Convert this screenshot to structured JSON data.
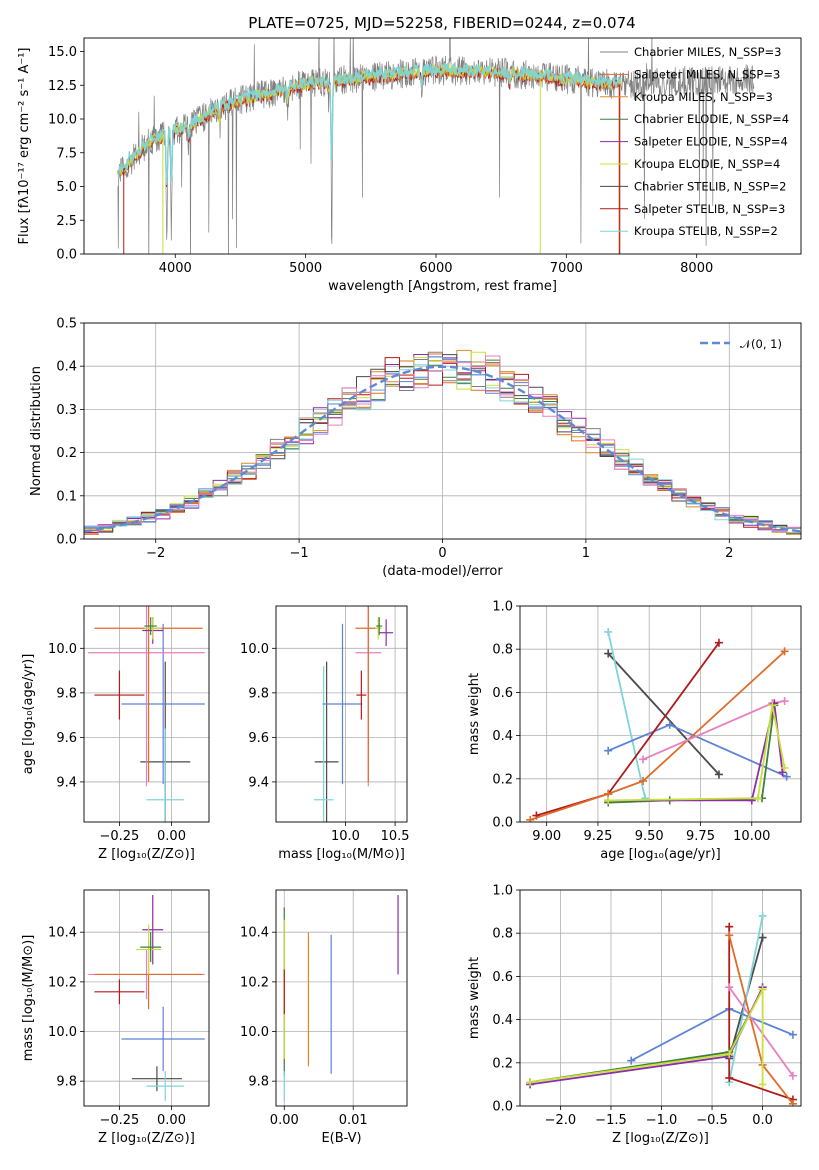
{
  "colors": {
    "chabrier_miles": "#808080",
    "salpeter_miles": "#e06c2a",
    "kroupa_miles": "#d98a2c",
    "chabrier_elodie": "#3f7f3f",
    "salpeter_elodie": "#8b2fa8",
    "kroupa_elodie": "#c9df3a",
    "chabrier_stelib": "#4a4a4a",
    "salpeter_stelib": "#b01c1c",
    "kroupa_stelib": "#7fd4d8",
    "extra_blue": "#5b84d6",
    "extra_pink": "#e87fbf",
    "normal_curve": "#5b8bd6"
  },
  "chart_data": [
    {
      "id": "spectrum",
      "type": "line",
      "title": "PLATE=0725, MJD=52258, FIBERID=0244, z=0.074",
      "xlabel": "wavelength [Angstrom, rest frame]",
      "ylabel": "Flux [fλ10⁻¹⁷ erg cm⁻² s⁻¹ A⁻¹]",
      "xlim": [
        3300,
        8800
      ],
      "ylim": [
        0,
        16
      ],
      "xticks": [
        "4000",
        "5000",
        "6000",
        "7000",
        "8000"
      ],
      "yticks": [
        "0.0",
        "2.5",
        "5.0",
        "7.5",
        "10.0",
        "12.5",
        "15.0"
      ],
      "legend_position": "upper-right",
      "legend": [
        {
          "label": "Chabrier MILES, N_SSP=3",
          "color": "#808080"
        },
        {
          "label": "Salpeter MILES, N_SSP=3",
          "color": "#e06c2a"
        },
        {
          "label": "Kroupa MILES, N_SSP=3",
          "color": "#d98a2c"
        },
        {
          "label": "Chabrier ELODIE, N_SSP=4",
          "color": "#3f7f3f"
        },
        {
          "label": "Salpeter ELODIE, N_SSP=4",
          "color": "#8b2fa8"
        },
        {
          "label": "Kroupa ELODIE, N_SSP=4",
          "color": "#c9df3a"
        },
        {
          "label": "Chabrier STELIB, N_SSP=2",
          "color": "#4a4a4a"
        },
        {
          "label": "Salpeter STELIB, N_SSP=3",
          "color": "#b01c1c"
        },
        {
          "label": "Kroupa STELIB, N_SSP=2",
          "color": "#7fd4d8"
        }
      ],
      "continuum": {
        "x": [
          3550,
          3650,
          3800,
          3950,
          4100,
          4300,
          4500,
          4800,
          5000,
          5300,
          5600,
          6000,
          6400,
          6800,
          7200,
          7500,
          7800,
          8200,
          8500
        ],
        "y": [
          5.8,
          6.8,
          8.3,
          9.0,
          9.4,
          10.7,
          11.4,
          12.1,
          12.6,
          12.9,
          13.2,
          13.6,
          13.5,
          13.2,
          12.7,
          12.5,
          12.8,
          12.9,
          13.0
        ]
      }
    },
    {
      "id": "residuals",
      "type": "histogram",
      "xlabel": "(data-model)/error",
      "ylabel": "Normed distribution",
      "xlim": [
        -2.5,
        2.5
      ],
      "ylim": [
        0,
        0.5
      ],
      "xticks": [
        "−2",
        "−1",
        "0",
        "1",
        "2"
      ],
      "yticks": [
        "0.0",
        "0.1",
        "0.2",
        "0.3",
        "0.4",
        "0.5"
      ],
      "legend_position": "upper-right",
      "legend": [
        {
          "label": "𝒩(0, 1)",
          "color": "#5b8bd6"
        }
      ],
      "bin_width": 0.1,
      "normal_pdf": {
        "mu": 0,
        "sigma": 1
      }
    },
    {
      "id": "age-vs-Z",
      "type": "errorbar",
      "xlabel": "Z [log₁₀(Z/Z⊙)]",
      "ylabel": "age  [log₁₀(age/yr)]",
      "xlim": [
        -0.42,
        0.18
      ],
      "ylim": [
        9.22,
        10.19
      ],
      "xticks": [
        {
          "v": -0.25,
          "t": "−0.25"
        },
        {
          "v": 0.0,
          "t": "0.00"
        }
      ],
      "yticks": [
        {
          "v": 9.4,
          "t": "9.4"
        },
        {
          "v": 9.6,
          "t": "9.6"
        },
        {
          "v": 9.8,
          "t": "9.8"
        },
        {
          "v": 10.0,
          "t": "10.0"
        }
      ],
      "points": [
        {
          "x": -0.03,
          "y": 9.49,
          "xerr": 0.12,
          "yerr": 0.45,
          "color": "#4a4a4a"
        },
        {
          "x": -0.03,
          "y": 9.32,
          "xerr": 0.09,
          "yerr": 0.32,
          "color": "#7fd4d8"
        },
        {
          "x": -0.04,
          "y": 9.75,
          "xerr": 0.2,
          "yerr": 0.36,
          "color": "#5b84d6"
        },
        {
          "x": -0.25,
          "y": 9.79,
          "xerr": 0.12,
          "yerr": 0.11,
          "color": "#b01c1c"
        },
        {
          "x": -0.12,
          "y": 9.98,
          "xerr": 0.28,
          "yerr": 0.6,
          "color": "#e87fbf"
        },
        {
          "x": -0.11,
          "y": 10.09,
          "xerr": 0.26,
          "yerr": 0.69,
          "color": "#e06c2a"
        },
        {
          "x": -0.09,
          "y": 10.08,
          "xerr": 0.05,
          "yerr": 0.06,
          "color": "#8b2fa8"
        },
        {
          "x": -0.09,
          "y": 10.09,
          "xerr": 0.04,
          "yerr": 0.05,
          "color": "#c9df3a"
        },
        {
          "x": -0.1,
          "y": 10.1,
          "xerr": 0.03,
          "yerr": 0.04,
          "color": "#3f7f3f"
        }
      ]
    },
    {
      "id": "age-vs-mass",
      "type": "errorbar",
      "xlabel": "mass [log₁₀(M/M⊙)]",
      "ylabel": "",
      "xlim": [
        9.3,
        10.62
      ],
      "ylim": [
        9.22,
        10.19
      ],
      "xticks": [
        {
          "v": 10.0,
          "t": "10.0"
        },
        {
          "v": 10.5,
          "t": "10.5"
        }
      ],
      "yticks": [
        {
          "v": 9.4,
          "t": "9.4"
        },
        {
          "v": 9.6,
          "t": "9.6"
        },
        {
          "v": 9.8,
          "t": "9.8"
        },
        {
          "v": 10.0,
          "t": "10.0"
        }
      ],
      "points": [
        {
          "x": 9.81,
          "y": 9.49,
          "xerr": 0.12,
          "yerr": 0.45,
          "color": "#4a4a4a"
        },
        {
          "x": 9.78,
          "y": 9.32,
          "xerr": 0.1,
          "yerr": 0.6,
          "color": "#7fd4d8"
        },
        {
          "x": 9.97,
          "y": 9.75,
          "xerr": 0.2,
          "yerr": 0.36,
          "color": "#5b84d6"
        },
        {
          "x": 10.16,
          "y": 9.79,
          "xerr": 0.05,
          "yerr": 0.11,
          "color": "#b01c1c"
        },
        {
          "x": 10.23,
          "y": 9.98,
          "xerr": 0.13,
          "yerr": 0.6,
          "color": "#e87fbf"
        },
        {
          "x": 10.23,
          "y": 10.09,
          "xerr": 0.13,
          "yerr": 0.69,
          "color": "#e06c2a"
        },
        {
          "x": 10.41,
          "y": 10.07,
          "xerr": 0.07,
          "yerr": 0.06,
          "color": "#8b2fa8"
        },
        {
          "x": 10.33,
          "y": 10.09,
          "xerr": 0.03,
          "yerr": 0.05,
          "color": "#c9df3a"
        },
        {
          "x": 10.34,
          "y": 10.1,
          "xerr": 0.03,
          "yerr": 0.04,
          "color": "#3f7f3f"
        }
      ]
    },
    {
      "id": "weight-vs-age",
      "type": "line",
      "xlabel": "age  [log₁₀(age/yr)]",
      "ylabel": "mass weight",
      "xlim": [
        8.87,
        10.24
      ],
      "ylim": [
        0,
        1
      ],
      "xticks": [
        {
          "v": 9.0,
          "t": "9.00"
        },
        {
          "v": 9.25,
          "t": "9.25"
        },
        {
          "v": 9.5,
          "t": "9.50"
        },
        {
          "v": 9.75,
          "t": "9.75"
        },
        {
          "v": 10.0,
          "t": "10.00"
        }
      ],
      "yticks": [
        {
          "v": 0,
          "t": "0.0"
        },
        {
          "v": 0.2,
          "t": "0.2"
        },
        {
          "v": 0.4,
          "t": "0.4"
        },
        {
          "v": 0.6,
          "t": "0.6"
        },
        {
          "v": 0.8,
          "t": "0.8"
        },
        {
          "v": 1.0,
          "t": "1.0"
        }
      ],
      "series": [
        {
          "color": "#4a4a4a",
          "x": [
            9.3,
            9.84
          ],
          "y": [
            0.78,
            0.22
          ]
        },
        {
          "color": "#7fd4d8",
          "x": [
            9.3,
            9.48
          ],
          "y": [
            0.88,
            0.11
          ]
        },
        {
          "color": "#5b84d6",
          "x": [
            9.3,
            9.6,
            10.17
          ],
          "y": [
            0.33,
            0.45,
            0.21
          ]
        },
        {
          "color": "#b01c1c",
          "x": [
            8.95,
            9.3,
            9.84
          ],
          "y": [
            0.03,
            0.13,
            0.83
          ]
        },
        {
          "color": "#e06c2a",
          "x": [
            8.92,
            9.3,
            9.47,
            10.16
          ],
          "y": [
            0.01,
            0.13,
            0.19,
            0.79
          ]
        },
        {
          "color": "#e87fbf",
          "x": [
            9.47,
            10.1,
            10.16
          ],
          "y": [
            0.29,
            0.55,
            0.56
          ]
        },
        {
          "color": "#3f7f3f",
          "x": [
            9.3,
            9.6,
            10.05,
            10.11
          ],
          "y": [
            0.09,
            0.1,
            0.11,
            0.54
          ]
        },
        {
          "color": "#8b2fa8",
          "x": [
            9.3,
            10.0,
            10.11,
            10.15
          ],
          "y": [
            0.1,
            0.1,
            0.55,
            0.23
          ]
        },
        {
          "color": "#c9df3a",
          "x": [
            9.3,
            10.03,
            10.1,
            10.16
          ],
          "y": [
            0.1,
            0.11,
            0.54,
            0.25
          ]
        }
      ]
    },
    {
      "id": "mass-vs-Z",
      "type": "errorbar",
      "xlabel": "Z [log₁₀(Z/Z⊙)]",
      "ylabel": "mass [log₁₀(M/M⊙)]",
      "xlim": [
        -0.42,
        0.18
      ],
      "ylim": [
        9.7,
        10.57
      ],
      "xticks": [
        {
          "v": -0.25,
          "t": "−0.25"
        },
        {
          "v": 0.0,
          "t": "0.00"
        }
      ],
      "yticks": [
        {
          "v": 9.8,
          "t": "9.8"
        },
        {
          "v": 10.0,
          "t": "10.0"
        },
        {
          "v": 10.2,
          "t": "10.2"
        },
        {
          "v": 10.4,
          "t": "10.4"
        }
      ],
      "points": [
        {
          "x": -0.07,
          "y": 9.81,
          "xerr": 0.12,
          "yerr": 0.05,
          "color": "#4a4a4a"
        },
        {
          "x": -0.03,
          "y": 9.78,
          "xerr": 0.09,
          "yerr": 0.06,
          "color": "#7fd4d8"
        },
        {
          "x": -0.04,
          "y": 9.97,
          "xerr": 0.2,
          "yerr": 0.13,
          "color": "#5b84d6"
        },
        {
          "x": -0.25,
          "y": 10.16,
          "xerr": 0.12,
          "yerr": 0.05,
          "color": "#b01c1c"
        },
        {
          "x": -0.12,
          "y": 10.23,
          "xerr": 0.28,
          "yerr": 0.1,
          "color": "#e87fbf"
        },
        {
          "x": -0.11,
          "y": 10.23,
          "xerr": 0.26,
          "yerr": 0.14,
          "color": "#e06c2a"
        },
        {
          "x": -0.09,
          "y": 10.41,
          "xerr": 0.05,
          "yerr": 0.14,
          "color": "#8b2fa8"
        },
        {
          "x": -0.11,
          "y": 10.33,
          "xerr": 0.06,
          "yerr": 0.1,
          "color": "#c9df3a"
        },
        {
          "x": -0.1,
          "y": 10.34,
          "xerr": 0.05,
          "yerr": 0.06,
          "color": "#3f7f3f"
        }
      ]
    },
    {
      "id": "mass-vs-EBV",
      "type": "errorbar",
      "xlabel": "E(B-V)",
      "ylabel": "",
      "xlim": [
        -0.0012,
        0.0178
      ],
      "ylim": [
        9.7,
        10.57
      ],
      "xticks": [
        {
          "v": 0.0,
          "t": "0.00"
        },
        {
          "v": 0.01,
          "t": "0.01"
        }
      ],
      "yticks": [
        {
          "v": 9.8,
          "t": "9.8"
        },
        {
          "v": 10.0,
          "t": "10.0"
        },
        {
          "v": 10.2,
          "t": "10.2"
        },
        {
          "v": 10.4,
          "t": "10.4"
        }
      ],
      "points": [
        {
          "x": 0.0,
          "y": 10.16,
          "xerr": 0,
          "yerr": 0.34,
          "color": "#3f7f3f"
        },
        {
          "x": 0.0,
          "y": 10.17,
          "xerr": 0,
          "yerr": 0.28,
          "color": "#c9df3a"
        },
        {
          "x": 0.0,
          "y": 10.16,
          "xerr": 0,
          "yerr": 0.09,
          "color": "#b01c1c"
        },
        {
          "x": 0.0,
          "y": 9.78,
          "xerr": 0,
          "yerr": 0.06,
          "color": "#7fd4d8"
        },
        {
          "x": 0.0035,
          "y": 10.13,
          "xerr": 0,
          "yerr": 0.27,
          "color": "#d98a2c"
        },
        {
          "x": 0.0068,
          "y": 10.11,
          "xerr": 0,
          "yerr": 0.28,
          "color": "#5b84d6"
        },
        {
          "x": 0.0165,
          "y": 10.39,
          "xerr": 0,
          "yerr": 0.16,
          "color": "#8b2fa8"
        }
      ]
    },
    {
      "id": "weight-vs-Z",
      "type": "line",
      "xlabel": "Z [log₁₀(Z/Z⊙)]",
      "ylabel": "mass weight",
      "xlim": [
        -2.4,
        0.38
      ],
      "ylim": [
        0,
        1
      ],
      "xticks": [
        {
          "v": -2.0,
          "t": "−2.0"
        },
        {
          "v": -1.5,
          "t": "−1.5"
        },
        {
          "v": -1.0,
          "t": "−1.0"
        },
        {
          "v": -0.5,
          "t": "−0.5"
        },
        {
          "v": 0.0,
          "t": "0.0"
        }
      ],
      "yticks": [
        {
          "v": 0,
          "t": "0.0"
        },
        {
          "v": 0.2,
          "t": "0.2"
        },
        {
          "v": 0.4,
          "t": "0.4"
        },
        {
          "v": 0.6,
          "t": "0.6"
        },
        {
          "v": 0.8,
          "t": "0.8"
        },
        {
          "v": 1.0,
          "t": "1.0"
        }
      ],
      "series": [
        {
          "color": "#4a4a4a",
          "x": [
            -0.33,
            0.0
          ],
          "y": [
            0.22,
            0.78
          ]
        },
        {
          "color": "#7fd4d8",
          "x": [
            -0.33,
            0.0
          ],
          "y": [
            0.11,
            0.88
          ]
        },
        {
          "color": "#5b84d6",
          "x": [
            -1.3,
            -0.33,
            0.3
          ],
          "y": [
            0.21,
            0.45,
            0.33
          ]
        },
        {
          "color": "#b01c1c",
          "x": [
            -0.33,
            -0.33,
            0.3
          ],
          "y": [
            0.83,
            0.13,
            0.03
          ]
        },
        {
          "color": "#e06c2a",
          "x": [
            -0.33,
            0.0,
            0.3
          ],
          "y": [
            0.79,
            0.19,
            0.01
          ]
        },
        {
          "color": "#e87fbf",
          "x": [
            -0.33,
            0.3
          ],
          "y": [
            0.55,
            0.14
          ]
        },
        {
          "color": "#3f7f3f",
          "x": [
            -2.3,
            -0.33,
            0.0
          ],
          "y": [
            0.11,
            0.25,
            0.54
          ]
        },
        {
          "color": "#8b2fa8",
          "x": [
            -2.3,
            -0.33,
            0.0
          ],
          "y": [
            0.1,
            0.23,
            0.55
          ]
        },
        {
          "color": "#c9df3a",
          "x": [
            -2.3,
            -0.33,
            0.0,
            0.0
          ],
          "y": [
            0.11,
            0.24,
            0.54,
            0.1
          ]
        }
      ]
    }
  ]
}
